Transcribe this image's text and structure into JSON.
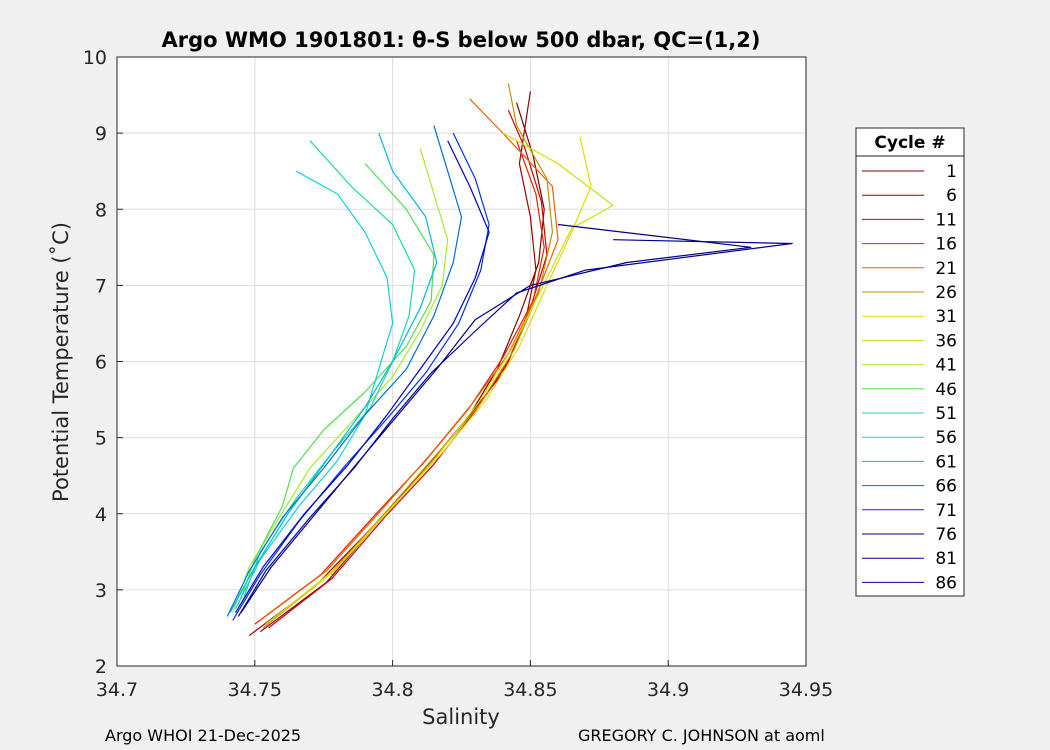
{
  "chart_data": {
    "type": "line",
    "title": "Argo WMO 1901801: θ-S below 500 dbar,  QC=(1,2)",
    "xlabel": "Salinity",
    "ylabel": "Potential Temperature (˚C)",
    "xlim": [
      34.7,
      34.95
    ],
    "ylim": [
      2,
      10
    ],
    "xticks": [
      "34.7",
      "34.75",
      "34.8",
      "34.85",
      "34.9",
      "34.95"
    ],
    "xtick_values": [
      34.7,
      34.75,
      34.8,
      34.85,
      34.9,
      34.95
    ],
    "yticks": [
      "2",
      "3",
      "4",
      "5",
      "6",
      "7",
      "8",
      "9",
      "10"
    ],
    "ytick_values": [
      2,
      3,
      4,
      5,
      6,
      7,
      8,
      9,
      10
    ],
    "grid": true,
    "legend_title": "Cycle #",
    "legend_position": "right",
    "series": [
      {
        "name": "1",
        "color": "#800000",
        "points": [
          [
            34.752,
            2.45
          ],
          [
            34.776,
            3.1
          ],
          [
            34.795,
            3.9
          ],
          [
            34.812,
            4.6
          ],
          [
            34.828,
            5.3
          ],
          [
            34.838,
            5.9
          ],
          [
            34.846,
            6.6
          ],
          [
            34.853,
            7.3
          ],
          [
            34.855,
            8.0
          ],
          [
            34.851,
            8.7
          ],
          [
            34.845,
            9.4
          ]
        ]
      },
      {
        "name": "6",
        "color": "#a00000",
        "points": [
          [
            34.748,
            2.4
          ],
          [
            34.772,
            3.05
          ],
          [
            34.792,
            3.8
          ],
          [
            34.81,
            4.5
          ],
          [
            34.826,
            5.2
          ],
          [
            34.84,
            5.85
          ],
          [
            34.848,
            6.5
          ],
          [
            34.852,
            7.2
          ],
          [
            34.85,
            7.9
          ],
          [
            34.846,
            8.6
          ],
          [
            34.85,
            9.55
          ]
        ]
      },
      {
        "name": "11",
        "color": "#d00000",
        "points": [
          [
            34.755,
            2.5
          ],
          [
            34.778,
            3.15
          ],
          [
            34.797,
            3.95
          ],
          [
            34.815,
            4.65
          ],
          [
            34.83,
            5.35
          ],
          [
            34.842,
            6.0
          ],
          [
            34.85,
            6.7
          ],
          [
            34.856,
            7.4
          ],
          [
            34.854,
            8.1
          ],
          [
            34.848,
            8.8
          ],
          [
            34.842,
            9.3
          ]
        ]
      },
      {
        "name": "16",
        "color": "#e82000",
        "points": [
          [
            34.75,
            2.55
          ],
          [
            34.774,
            3.2
          ],
          [
            34.794,
            4.0
          ],
          [
            34.812,
            4.7
          ],
          [
            34.828,
            5.4
          ],
          [
            34.84,
            6.05
          ],
          [
            34.851,
            6.8
          ],
          [
            34.855,
            7.5
          ],
          [
            34.852,
            8.2
          ],
          [
            34.845,
            8.9
          ]
        ]
      },
      {
        "name": "21",
        "color": "#f06000",
        "points": [
          [
            34.752,
            2.6
          ],
          [
            34.776,
            3.25
          ],
          [
            34.796,
            4.05
          ],
          [
            34.813,
            4.75
          ],
          [
            34.829,
            5.45
          ],
          [
            34.842,
            6.1
          ],
          [
            34.852,
            6.85
          ],
          [
            34.86,
            7.6
          ],
          [
            34.858,
            8.3
          ],
          [
            34.84,
            9.0
          ],
          [
            34.828,
            9.45
          ]
        ]
      },
      {
        "name": "26",
        "color": "#c09000",
        "points": [
          [
            34.753,
            2.5
          ],
          [
            34.777,
            3.2
          ],
          [
            34.797,
            4.0
          ],
          [
            34.814,
            4.7
          ],
          [
            34.831,
            5.4
          ],
          [
            34.844,
            6.15
          ],
          [
            34.853,
            6.9
          ],
          [
            34.858,
            7.7
          ],
          [
            34.856,
            8.4
          ],
          [
            34.845,
            9.1
          ],
          [
            34.842,
            9.65
          ]
        ]
      },
      {
        "name": "31",
        "color": "#e8d800",
        "points": [
          [
            34.756,
            2.6
          ],
          [
            34.78,
            3.3
          ],
          [
            34.8,
            4.1
          ],
          [
            34.818,
            4.8
          ],
          [
            34.834,
            5.5
          ],
          [
            34.846,
            6.2
          ],
          [
            34.856,
            7.0
          ],
          [
            34.865,
            7.7
          ],
          [
            34.872,
            8.3
          ],
          [
            34.868,
            8.95
          ]
        ]
      },
      {
        "name": "36",
        "color": "#d0e000",
        "points": [
          [
            34.754,
            2.55
          ],
          [
            34.779,
            3.25
          ],
          [
            34.799,
            4.05
          ],
          [
            34.816,
            4.75
          ],
          [
            34.831,
            5.45
          ],
          [
            34.843,
            6.15
          ],
          [
            34.854,
            6.95
          ],
          [
            34.865,
            7.75
          ],
          [
            34.88,
            8.05
          ],
          [
            34.86,
            8.6
          ],
          [
            34.84,
            9.0
          ]
        ]
      },
      {
        "name": "41",
        "color": "#a8e830",
        "points": [
          [
            34.742,
            2.7
          ],
          [
            34.748,
            3.3
          ],
          [
            34.758,
            3.9
          ],
          [
            34.77,
            4.6
          ],
          [
            34.785,
            5.2
          ],
          [
            34.8,
            5.8
          ],
          [
            34.81,
            6.4
          ],
          [
            34.818,
            7.0
          ],
          [
            34.82,
            7.6
          ],
          [
            34.815,
            8.2
          ],
          [
            34.81,
            8.8
          ]
        ]
      },
      {
        "name": "46",
        "color": "#50e050",
        "points": [
          [
            34.744,
            2.8
          ],
          [
            34.75,
            3.4
          ],
          [
            34.76,
            4.1
          ],
          [
            34.764,
            4.6
          ],
          [
            34.775,
            5.1
          ],
          [
            34.79,
            5.6
          ],
          [
            34.805,
            6.2
          ],
          [
            34.814,
            6.8
          ],
          [
            34.815,
            7.4
          ],
          [
            34.805,
            8.0
          ],
          [
            34.79,
            8.6
          ]
        ]
      },
      {
        "name": "51",
        "color": "#20d8a0",
        "points": [
          [
            34.746,
            2.9
          ],
          [
            34.752,
            3.5
          ],
          [
            34.765,
            4.2
          ],
          [
            34.778,
            4.8
          ],
          [
            34.792,
            5.4
          ],
          [
            34.8,
            6.0
          ],
          [
            34.806,
            6.6
          ],
          [
            34.808,
            7.2
          ],
          [
            34.8,
            7.8
          ],
          [
            34.785,
            8.3
          ],
          [
            34.77,
            8.9
          ]
        ]
      },
      {
        "name": "56",
        "color": "#10d0e0",
        "points": [
          [
            34.743,
            2.75
          ],
          [
            34.752,
            3.4
          ],
          [
            34.766,
            4.1
          ],
          [
            34.78,
            4.7
          ],
          [
            34.79,
            5.3
          ],
          [
            34.795,
            5.9
          ],
          [
            34.8,
            6.5
          ],
          [
            34.798,
            7.1
          ],
          [
            34.79,
            7.7
          ],
          [
            34.78,
            8.2
          ],
          [
            34.765,
            8.5
          ]
        ]
      },
      {
        "name": "61",
        "color": "#00b8d8",
        "points": [
          [
            34.741,
            2.7
          ],
          [
            34.75,
            3.3
          ],
          [
            34.762,
            4.0
          ],
          [
            34.776,
            4.7
          ],
          [
            34.79,
            5.4
          ],
          [
            34.8,
            6.0
          ],
          [
            34.81,
            6.7
          ],
          [
            34.816,
            7.3
          ],
          [
            34.812,
            7.9
          ],
          [
            34.8,
            8.5
          ],
          [
            34.795,
            9.0
          ]
        ]
      },
      {
        "name": "66",
        "color": "#0070d0",
        "points": [
          [
            34.74,
            2.65
          ],
          [
            34.748,
            3.25
          ],
          [
            34.76,
            3.95
          ],
          [
            34.775,
            4.6
          ],
          [
            34.79,
            5.3
          ],
          [
            34.805,
            5.9
          ],
          [
            34.815,
            6.6
          ],
          [
            34.822,
            7.3
          ],
          [
            34.825,
            7.9
          ],
          [
            34.82,
            8.5
          ],
          [
            34.815,
            9.1
          ]
        ]
      },
      {
        "name": "71",
        "color": "#0030e8",
        "points": [
          [
            34.742,
            2.6
          ],
          [
            34.752,
            3.2
          ],
          [
            34.766,
            3.9
          ],
          [
            34.782,
            4.6
          ],
          [
            34.798,
            5.25
          ],
          [
            34.812,
            5.85
          ],
          [
            34.824,
            6.5
          ],
          [
            34.832,
            7.2
          ],
          [
            34.835,
            7.8
          ],
          [
            34.83,
            8.4
          ],
          [
            34.822,
            9.0
          ]
        ]
      },
      {
        "name": "76",
        "color": "#000080",
        "points": [
          [
            34.745,
            2.7
          ],
          [
            34.756,
            3.3
          ],
          [
            34.772,
            4.0
          ],
          [
            34.788,
            4.7
          ],
          [
            34.802,
            5.3
          ],
          [
            34.816,
            5.9
          ],
          [
            34.83,
            6.55
          ],
          [
            34.85,
            7.0
          ],
          [
            34.885,
            7.3
          ],
          [
            34.93,
            7.5
          ],
          [
            34.86,
            7.8
          ]
        ]
      },
      {
        "name": "81",
        "color": "#000098",
        "points": [
          [
            34.744,
            2.65
          ],
          [
            34.754,
            3.25
          ],
          [
            34.77,
            3.95
          ],
          [
            34.786,
            4.6
          ],
          [
            34.8,
            5.25
          ],
          [
            34.814,
            5.85
          ],
          [
            34.83,
            6.4
          ],
          [
            34.845,
            6.9
          ],
          [
            34.87,
            7.2
          ],
          [
            34.945,
            7.55
          ],
          [
            34.88,
            7.6
          ]
        ]
      },
      {
        "name": "86",
        "color": "#0000c0",
        "points": [
          [
            34.743,
            2.7
          ],
          [
            34.753,
            3.3
          ],
          [
            34.768,
            4.0
          ],
          [
            34.784,
            4.65
          ],
          [
            34.798,
            5.3
          ],
          [
            34.81,
            5.9
          ],
          [
            34.822,
            6.5
          ],
          [
            34.83,
            7.1
          ],
          [
            34.835,
            7.7
          ],
          [
            34.828,
            8.3
          ],
          [
            34.82,
            8.9
          ]
        ]
      }
    ]
  },
  "footer": {
    "left": "Argo WHOI 21-Dec-2025",
    "right": "GREGORY C. JOHNSON at aoml"
  }
}
